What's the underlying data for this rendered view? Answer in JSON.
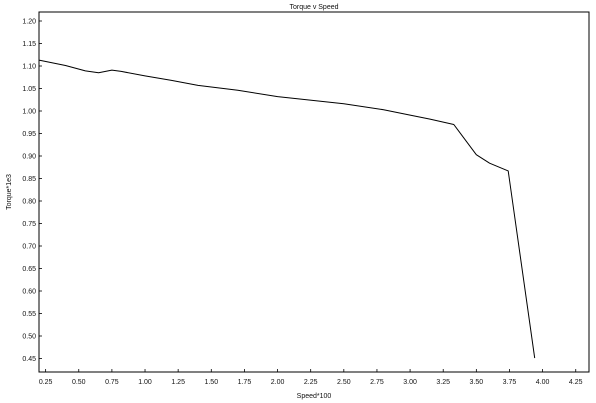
{
  "chart_data": {
    "type": "line",
    "title": "Torque v Speed",
    "xlabel": "Speed*100",
    "ylabel": "Torque*1e3",
    "xlim": [
      0.2,
      4.35
    ],
    "ylim": [
      0.42,
      1.22
    ],
    "x_ticks": [
      "0.25",
      "0.50",
      "0.75",
      "1.00",
      "1.25",
      "1.50",
      "1.75",
      "2.00",
      "2.25",
      "2.50",
      "2.75",
      "3.00",
      "3.25",
      "3.50",
      "3.75",
      "4.00",
      "4.25"
    ],
    "y_ticks": [
      "1.20",
      "1.15",
      "1.10",
      "1.05",
      "1.00",
      "0.95",
      "0.90",
      "0.85",
      "0.80",
      "0.75",
      "0.70",
      "0.65",
      "0.60",
      "0.55",
      "0.50",
      "0.45"
    ],
    "grid": false,
    "series": [
      {
        "x": [
          0.2,
          0.4,
          0.55,
          0.65,
          0.75,
          0.82,
          1.0,
          1.2,
          1.4,
          1.7,
          2.0,
          2.5,
          2.8,
          3.0,
          3.15,
          3.33,
          3.5,
          3.6,
          3.74,
          3.94
        ],
        "y": [
          1.113,
          1.101,
          1.089,
          1.085,
          1.091,
          1.088,
          1.078,
          1.068,
          1.057,
          1.046,
          1.032,
          1.016,
          1.003,
          0.991,
          0.982,
          0.97,
          0.903,
          0.884,
          0.867,
          0.451
        ],
        "color": "#000000"
      }
    ]
  }
}
